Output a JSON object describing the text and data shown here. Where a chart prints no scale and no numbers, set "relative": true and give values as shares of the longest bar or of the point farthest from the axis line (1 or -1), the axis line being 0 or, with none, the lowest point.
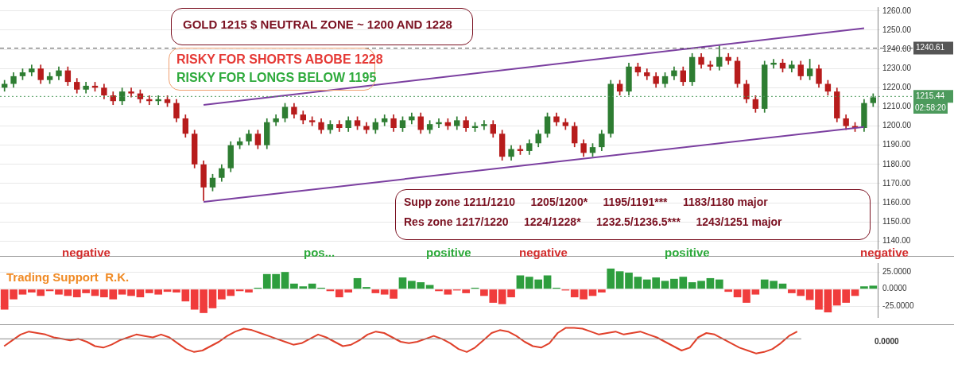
{
  "chart_data": [
    {
      "type": "candlestick",
      "categories": [
        null,
        null,
        null,
        null,
        null,
        null,
        null,
        null,
        null,
        null,
        null,
        null,
        null,
        null,
        null,
        null,
        null,
        null,
        null,
        null,
        null,
        null,
        null,
        null,
        null,
        null,
        null,
        null,
        null,
        null,
        null,
        null,
        null,
        null,
        null,
        null,
        null,
        null,
        null,
        null,
        null,
        null,
        null,
        null,
        null,
        null,
        null,
        null,
        null,
        null,
        null,
        null,
        null,
        null,
        null,
        null,
        null,
        null,
        null,
        null,
        null,
        null,
        null,
        null,
        null,
        null,
        null,
        null,
        null,
        null,
        null,
        null,
        null,
        null,
        null,
        null,
        null,
        null,
        null,
        null,
        null,
        null,
        null,
        null,
        null,
        null,
        null,
        null,
        null,
        null,
        null,
        null,
        null,
        null,
        null,
        null,
        null
      ],
      "ohlc": [
        [
          1220,
          1224,
          1218,
          1222
        ],
        [
          1222,
          1228,
          1220,
          1226
        ],
        [
          1226,
          1230,
          1224,
          1228
        ],
        [
          1228,
          1232,
          1226,
          1230
        ],
        [
          1230,
          1232,
          1222,
          1224
        ],
        [
          1224,
          1228,
          1222,
          1226
        ],
        [
          1226,
          1231,
          1224,
          1229
        ],
        [
          1229,
          1231,
          1221,
          1223
        ],
        [
          1223,
          1225,
          1217,
          1219
        ],
        [
          1219,
          1223,
          1217,
          1221
        ],
        [
          1221,
          1223,
          1218,
          1220
        ],
        [
          1220,
          1222,
          1214,
          1216
        ],
        [
          1216,
          1218,
          1211,
          1213
        ],
        [
          1213,
          1220,
          1211,
          1218
        ],
        [
          1218,
          1220,
          1215,
          1217
        ],
        [
          1217,
          1219,
          1212,
          1214
        ],
        [
          1214,
          1216,
          1211,
          1213
        ],
        [
          1213,
          1216,
          1211,
          1214
        ],
        [
          1214,
          1216,
          1210,
          1212
        ],
        [
          1212,
          1214,
          1202,
          1204
        ],
        [
          1204,
          1206,
          1194,
          1196
        ],
        [
          1196,
          1198,
          1178,
          1180
        ],
        [
          1180,
          1182,
          1161,
          1168
        ],
        [
          1168,
          1175,
          1166,
          1173
        ],
        [
          1173,
          1180,
          1171,
          1178
        ],
        [
          1178,
          1192,
          1176,
          1190
        ],
        [
          1190,
          1194,
          1188,
          1192
        ],
        [
          1192,
          1198,
          1190,
          1196
        ],
        [
          1196,
          1198,
          1188,
          1190
        ],
        [
          1190,
          1204,
          1188,
          1202
        ],
        [
          1202,
          1206,
          1200,
          1204
        ],
        [
          1204,
          1212,
          1202,
          1210
        ],
        [
          1210,
          1212,
          1204,
          1206
        ],
        [
          1206,
          1208,
          1201,
          1203
        ],
        [
          1203,
          1205,
          1200,
          1202
        ],
        [
          1202,
          1204,
          1196,
          1198
        ],
        [
          1198,
          1203,
          1196,
          1201
        ],
        [
          1201,
          1203,
          1197,
          1199
        ],
        [
          1199,
          1205,
          1197,
          1203
        ],
        [
          1203,
          1205,
          1198,
          1200
        ],
        [
          1200,
          1202,
          1196,
          1198
        ],
        [
          1198,
          1204,
          1196,
          1202
        ],
        [
          1202,
          1206,
          1200,
          1204
        ],
        [
          1204,
          1206,
          1197,
          1199
        ],
        [
          1199,
          1205,
          1197,
          1203
        ],
        [
          1203,
          1207,
          1201,
          1205
        ],
        [
          1205,
          1207,
          1196,
          1198
        ],
        [
          1198,
          1203,
          1196,
          1201
        ],
        [
          1201,
          1204,
          1199,
          1202
        ],
        [
          1202,
          1204,
          1198,
          1200
        ],
        [
          1200,
          1205,
          1198,
          1203
        ],
        [
          1203,
          1205,
          1197,
          1199
        ],
        [
          1199,
          1202,
          1197,
          1200
        ],
        [
          1200,
          1203,
          1198,
          1201
        ],
        [
          1201,
          1203,
          1194,
          1196
        ],
        [
          1196,
          1198,
          1182,
          1184
        ],
        [
          1184,
          1190,
          1182,
          1188
        ],
        [
          1188,
          1190,
          1185,
          1187
        ],
        [
          1187,
          1193,
          1185,
          1191
        ],
        [
          1191,
          1198,
          1189,
          1196
        ],
        [
          1196,
          1207,
          1194,
          1205
        ],
        [
          1205,
          1207,
          1200,
          1202
        ],
        [
          1202,
          1204,
          1198,
          1200
        ],
        [
          1200,
          1202,
          1189,
          1191
        ],
        [
          1191,
          1193,
          1184,
          1186
        ],
        [
          1186,
          1191,
          1184,
          1189
        ],
        [
          1189,
          1198,
          1187,
          1196
        ],
        [
          1196,
          1224,
          1194,
          1222
        ],
        [
          1222,
          1224,
          1216,
          1218
        ],
        [
          1218,
          1233,
          1216,
          1231
        ],
        [
          1231,
          1233,
          1226,
          1228
        ],
        [
          1228,
          1230,
          1224,
          1226
        ],
        [
          1226,
          1228,
          1220,
          1222
        ],
        [
          1222,
          1228,
          1220,
          1226
        ],
        [
          1226,
          1231,
          1224,
          1229
        ],
        [
          1229,
          1231,
          1221,
          1223
        ],
        [
          1223,
          1238,
          1221,
          1236
        ],
        [
          1236,
          1238,
          1230,
          1232
        ],
        [
          1232,
          1234,
          1229,
          1231
        ],
        [
          1231,
          1242,
          1229,
          1236
        ],
        [
          1236,
          1238,
          1232,
          1234
        ],
        [
          1234,
          1236,
          1220,
          1222
        ],
        [
          1222,
          1224,
          1212,
          1214
        ],
        [
          1214,
          1216,
          1207,
          1209
        ],
        [
          1209,
          1234,
          1207,
          1232
        ],
        [
          1232,
          1235,
          1230,
          1233
        ],
        [
          1233,
          1235,
          1228,
          1230
        ],
        [
          1230,
          1234,
          1228,
          1232
        ],
        [
          1232,
          1234,
          1224,
          1226
        ],
        [
          1226,
          1235,
          1224,
          1230
        ],
        [
          1230,
          1232,
          1220,
          1222
        ],
        [
          1222,
          1224,
          1216,
          1218
        ],
        [
          1218,
          1220,
          1202,
          1204
        ],
        [
          1204,
          1206,
          1198,
          1200
        ],
        [
          1200,
          1202,
          1197,
          1199
        ],
        [
          1199,
          1214,
          1197,
          1212
        ],
        [
          1212,
          1217,
          1210,
          1215
        ]
      ],
      "colors": [
        "#2e7d32",
        "#2e7d32",
        "#2e7d32",
        "#2e7d32",
        "#b71c1c",
        "#2e7d32",
        "#2e7d32",
        "#b71c1c",
        "#b71c1c",
        "#2e7d32",
        "#b71c1c",
        "#b71c1c",
        "#b71c1c",
        "#2e7d32",
        "#b71c1c",
        "#b71c1c",
        "#b71c1c",
        "#2e7d32",
        "#b71c1c",
        "#b71c1c",
        "#b71c1c",
        "#b71c1c",
        "#b71c1c",
        "#2e7d32",
        "#2e7d32",
        "#2e7d32",
        "#2e7d32",
        "#2e7d32",
        "#b71c1c",
        "#2e7d32",
        "#2e7d32",
        "#2e7d32",
        "#b71c1c",
        "#b71c1c",
        "#b71c1c",
        "#b71c1c",
        "#2e7d32",
        "#b71c1c",
        "#2e7d32",
        "#b71c1c",
        "#b71c1c",
        "#2e7d32",
        "#2e7d32",
        "#b71c1c",
        "#2e7d32",
        "#2e7d32",
        "#b71c1c",
        "#2e7d32",
        "#2e7d32",
        "#b71c1c",
        "#2e7d32",
        "#b71c1c",
        "#2e7d32",
        "#2e7d32",
        "#b71c1c",
        "#b71c1c",
        "#2e7d32",
        "#b71c1c",
        "#2e7d32",
        "#2e7d32",
        "#2e7d32",
        "#b71c1c",
        "#b71c1c",
        "#b71c1c",
        "#b71c1c",
        "#2e7d32",
        "#2e7d32",
        "#2e7d32",
        "#b71c1c",
        "#2e7d32",
        "#b71c1c",
        "#b71c1c",
        "#b71c1c",
        "#2e7d32",
        "#2e7d32",
        "#b71c1c",
        "#2e7d32",
        "#b71c1c",
        "#b71c1c",
        "#2e7d32",
        "#b71c1c",
        "#b71c1c",
        "#b71c1c",
        "#b71c1c",
        "#2e7d32",
        "#2e7d32",
        "#b71c1c",
        "#2e7d32",
        "#b71c1c",
        "#2e7d32",
        "#b71c1c",
        "#b71c1c",
        "#b71c1c",
        "#b71c1c",
        "#b71c1c",
        "#2e7d32",
        "#2e7d32"
      ],
      "series": [
        {
          "type": "line",
          "color": "#7b3fa0",
          "values": [
            null,
            null,
            null,
            null,
            null,
            null,
            null,
            null,
            null,
            null,
            null,
            null,
            null,
            null,
            null,
            null,
            null,
            null,
            null,
            null,
            null,
            null,
            1211,
            null,
            null,
            null,
            null,
            null,
            null,
            null,
            null,
            null,
            null,
            null,
            null,
            null,
            null,
            null,
            null,
            null,
            null,
            null,
            null,
            null,
            null,
            null,
            null,
            null,
            null,
            null,
            null,
            null,
            null,
            null,
            null,
            null,
            null,
            null,
            null,
            null,
            null,
            null,
            null,
            null,
            null,
            null,
            null,
            null,
            null,
            null,
            null,
            null,
            null,
            null,
            null,
            null,
            null,
            null,
            null,
            null,
            null,
            null,
            null,
            null,
            null,
            null,
            null,
            null,
            null,
            null,
            null,
            null,
            null,
            null,
            null,
            1251,
            null
          ]
        },
        {
          "type": "line",
          "color": "#7b3fa0",
          "values": [
            null,
            null,
            null,
            null,
            null,
            null,
            null,
            null,
            null,
            null,
            null,
            null,
            null,
            null,
            null,
            null,
            null,
            null,
            null,
            null,
            null,
            null,
            1160.5,
            null,
            null,
            null,
            null,
            null,
            null,
            null,
            null,
            null,
            null,
            null,
            null,
            null,
            null,
            null,
            null,
            null,
            null,
            null,
            null,
            null,
            null,
            null,
            null,
            null,
            null,
            null,
            null,
            null,
            null,
            null,
            null,
            null,
            null,
            null,
            null,
            null,
            null,
            null,
            null,
            null,
            null,
            null,
            null,
            null,
            null,
            null,
            null,
            null,
            null,
            null,
            null,
            null,
            null,
            null,
            null,
            null,
            null,
            null,
            null,
            null,
            null,
            null,
            null,
            null,
            null,
            null,
            null,
            null,
            null,
            null,
            null,
            1199.5,
            null
          ]
        }
      ],
      "ylim": [
        1136,
        1262
      ],
      "yticks": [
        {
          "value": 1140,
          "label": "1140.00"
        },
        {
          "value": 1150,
          "label": "1150.00"
        },
        {
          "value": 1160,
          "label": "1160.00"
        },
        {
          "value": 1170,
          "label": "1170.00"
        },
        {
          "value": 1180,
          "label": "1180.00"
        },
        {
          "value": 1190,
          "label": "1190.00"
        },
        {
          "value": 1200,
          "label": "1200.00"
        },
        {
          "value": 1210,
          "label": "1210.00"
        },
        {
          "value": 1220,
          "label": "1220.00"
        },
        {
          "value": 1230,
          "label": "1230.00"
        },
        {
          "value": 1240,
          "label": "1240.00"
        },
        {
          "value": 1250,
          "label": "1250.00"
        },
        {
          "value": 1260,
          "label": "1260.00"
        }
      ],
      "grid": "y",
      "marker": "none",
      "ref_lines": [
        {
          "axis": "y",
          "value": 1240.61,
          "label": "1240.61",
          "color": "#555555",
          "line_style": "dashed"
        },
        {
          "axis": "y",
          "value": 1215.44,
          "label": "1215.44",
          "color": "#4c9a5c",
          "line_style": "dotted"
        }
      ],
      "annotations": [
        "GOLD 1215 $ NEUTRAL ZONE ~ 1200 AND 1228",
        "RISKY FOR SHORTS ABOBE 1228",
        "RISKY FOR LONGS BELOW 1195",
        "Supp zone 1211/1210     1205/1200*     1195/1191***     1183/1180 major",
        "Res zone 1217/1220     1224/1228*     1232.5/1236.5***     1243/1251 major",
        "negative",
        "pos...",
        "positive",
        "negative",
        "positive",
        "negative",
        "02:58:20"
      ]
    },
    {
      "type": "bar",
      "categories": [
        null,
        null,
        null,
        null,
        null,
        null,
        null,
        null,
        null,
        null,
        null,
        null,
        null,
        null,
        null,
        null,
        null,
        null,
        null,
        null,
        null,
        null,
        null,
        null,
        null,
        null,
        null,
        null,
        null,
        null,
        null,
        null,
        null,
        null,
        null,
        null,
        null,
        null,
        null,
        null,
        null,
        null,
        null,
        null,
        null,
        null,
        null,
        null,
        null,
        null,
        null,
        null,
        null,
        null,
        null,
        null,
        null,
        null,
        null,
        null,
        null,
        null,
        null,
        null,
        null,
        null,
        null,
        null,
        null,
        null,
        null,
        null,
        null,
        null,
        null,
        null,
        null,
        null,
        null,
        null,
        null,
        null,
        null,
        null,
        null,
        null,
        null,
        null,
        null,
        null,
        null,
        null,
        null,
        null,
        null,
        null,
        null
      ],
      "values": [
        -30,
        -15,
        -8,
        -5,
        -10,
        -3,
        -8,
        -10,
        -12,
        -6,
        -10,
        -12,
        -15,
        -8,
        -10,
        -12,
        -6,
        -8,
        -4,
        -5,
        -18,
        -30,
        -35,
        -28,
        -15,
        -10,
        -3,
        -5,
        2,
        22,
        22,
        25,
        8,
        4,
        8,
        2,
        -3,
        -12,
        -5,
        16,
        3,
        -6,
        -8,
        -14,
        17,
        12,
        10,
        6,
        -3,
        -8,
        -2,
        -6,
        2,
        -10,
        -20,
        -22,
        -12,
        20,
        18,
        14,
        20,
        2,
        -2,
        -12,
        -15,
        -10,
        -5,
        30,
        26,
        24,
        18,
        14,
        17,
        12,
        15,
        18,
        10,
        12,
        16,
        14,
        -4,
        -12,
        -20,
        -8,
        14,
        12,
        8,
        -6,
        -10,
        -16,
        -30,
        -34,
        -24,
        -20,
        -10,
        4,
        5
      ],
      "colors": [
        "#f03c3c",
        "#f03c3c",
        "#f03c3c",
        "#f03c3c",
        "#f03c3c",
        "#f03c3c",
        "#f03c3c",
        "#f03c3c",
        "#f03c3c",
        "#f03c3c",
        "#f03c3c",
        "#f03c3c",
        "#f03c3c",
        "#f03c3c",
        "#f03c3c",
        "#f03c3c",
        "#f03c3c",
        "#f03c3c",
        "#f03c3c",
        "#f03c3c",
        "#f03c3c",
        "#f03c3c",
        "#f03c3c",
        "#f03c3c",
        "#f03c3c",
        "#f03c3c",
        "#f03c3c",
        "#f03c3c",
        "#2e9e3e",
        "#2e9e3e",
        "#2e9e3e",
        "#2e9e3e",
        "#2e9e3e",
        "#2e9e3e",
        "#2e9e3e",
        "#2e9e3e",
        "#f03c3c",
        "#f03c3c",
        "#f03c3c",
        "#2e9e3e",
        "#2e9e3e",
        "#f03c3c",
        "#f03c3c",
        "#f03c3c",
        "#2e9e3e",
        "#2e9e3e",
        "#2e9e3e",
        "#2e9e3e",
        "#f03c3c",
        "#f03c3c",
        "#f03c3c",
        "#f03c3c",
        "#2e9e3e",
        "#f03c3c",
        "#f03c3c",
        "#f03c3c",
        "#f03c3c",
        "#2e9e3e",
        "#2e9e3e",
        "#2e9e3e",
        "#2e9e3e",
        "#2e9e3e",
        "#f03c3c",
        "#f03c3c",
        "#f03c3c",
        "#f03c3c",
        "#f03c3c",
        "#2e9e3e",
        "#2e9e3e",
        "#2e9e3e",
        "#2e9e3e",
        "#2e9e3e",
        "#2e9e3e",
        "#2e9e3e",
        "#2e9e3e",
        "#2e9e3e",
        "#2e9e3e",
        "#2e9e3e",
        "#2e9e3e",
        "#2e9e3e",
        "#f03c3c",
        "#f03c3c",
        "#f03c3c",
        "#f03c3c",
        "#2e9e3e",
        "#2e9e3e",
        "#2e9e3e",
        "#f03c3c",
        "#f03c3c",
        "#f03c3c",
        "#f03c3c",
        "#f03c3c",
        "#f03c3c",
        "#f03c3c",
        "#f03c3c",
        "#2e9e3e",
        "#2e9e3e"
      ],
      "ylim": [
        -41,
        38
      ],
      "yticks": [
        {
          "value": 25,
          "label": "25.0000"
        },
        {
          "value": 0,
          "label": "0.0000"
        },
        {
          "value": -25,
          "label": "-25.0000"
        }
      ],
      "grid": "y",
      "annotations": [
        "Trading Support  R.K."
      ]
    },
    {
      "type": "line",
      "categories": [
        null,
        null,
        null,
        null,
        null,
        null,
        null,
        null,
        null,
        null,
        null,
        null,
        null,
        null,
        null,
        null,
        null,
        null,
        null,
        null,
        null,
        null,
        null,
        null,
        null,
        null,
        null,
        null,
        null,
        null,
        null,
        null,
        null,
        null,
        null,
        null,
        null,
        null,
        null,
        null,
        null,
        null,
        null,
        null,
        null,
        null,
        null,
        null,
        null,
        null,
        null,
        null,
        null,
        null,
        null,
        null,
        null,
        null,
        null,
        null,
        null,
        null,
        null,
        null,
        null,
        null,
        null,
        null,
        null,
        null,
        null,
        null,
        null,
        null,
        null,
        null,
        null,
        null,
        null,
        null,
        null,
        null,
        null,
        null,
        null,
        null,
        null,
        null,
        null,
        null,
        null,
        null,
        null,
        null,
        null,
        null,
        null
      ],
      "relative": true,
      "marker": "none",
      "series": [
        {
          "color": "#e0402a",
          "values": [
            -0.5,
            -0.1,
            0.3,
            0.5,
            0.4,
            0.3,
            0.1,
            0,
            -0.1,
            0,
            -0.2,
            -0.5,
            -0.6,
            -0.4,
            -0.1,
            0.1,
            0.3,
            0.2,
            0.1,
            0.3,
            0.1,
            -0.3,
            -0.7,
            -0.9,
            -0.8,
            -0.5,
            -0.2,
            0.2,
            0.5,
            0.7,
            0.6,
            0.4,
            0.2,
            0,
            -0.2,
            -0.4,
            -0.3,
            0,
            0.3,
            0.1,
            -0.2,
            -0.5,
            -0.4,
            -0.1,
            0.3,
            0.5,
            0.4,
            0.1,
            -0.2,
            -0.3,
            -0.2,
            0,
            0.2,
            0,
            -0.3,
            -0.7,
            -0.9,
            -0.6,
            -0.1,
            0.4,
            0.6,
            0.5,
            0.2,
            -0.2,
            -0.5,
            -0.6,
            -0.3,
            0.4,
            0.76,
            0.76,
            0.7,
            0.5,
            0.3,
            0.4,
            0.5,
            0.3,
            0.4,
            0.5,
            0.3,
            0.1,
            -0.2,
            -0.5,
            -0.8,
            -0.6,
            0.1,
            0.4,
            0.3,
            0,
            -0.3,
            -0.6,
            -0.8,
            -1,
            -0.9,
            -0.7,
            -0.3,
            0.2,
            0.5
          ]
        }
      ],
      "annotations": [
        "0.0000"
      ]
    }
  ]
}
